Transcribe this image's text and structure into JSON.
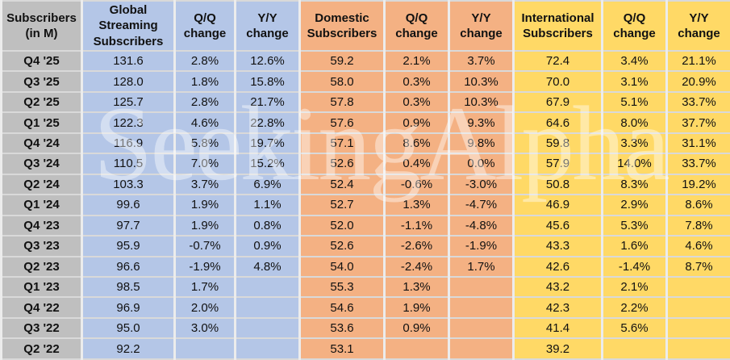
{
  "watermark": "SeekingAlpha",
  "colors": {
    "label_gray": "#BFBFBF",
    "global_blue": "#B4C6E7",
    "domestic_orange": "#F4B183",
    "international_yellow": "#FFD966",
    "gridline": "#D9D9D9"
  },
  "chart_data": {
    "type": "table",
    "title": "Streaming subscribers by quarter (in millions) with Q/Q and Y/Y change",
    "columns": [
      "Subscribers (in M)",
      "Global Streaming Subscribers",
      "Q/Q change",
      "Y/Y change",
      "Domestic Subscribers",
      "Q/Q change",
      "Y/Y change",
      "International Subscribers",
      "Q/Q change",
      "Y/Y change"
    ],
    "column_groups": [
      {
        "name": "labels",
        "color": "#BFBFBF",
        "col_indexes": [
          0
        ]
      },
      {
        "name": "global",
        "color": "#B4C6E7",
        "col_indexes": [
          1,
          2,
          3
        ]
      },
      {
        "name": "domestic",
        "color": "#F4B183",
        "col_indexes": [
          4,
          5,
          6
        ]
      },
      {
        "name": "international",
        "color": "#FFD966",
        "col_indexes": [
          7,
          8,
          9
        ]
      }
    ],
    "rows": [
      [
        "Q4 '25",
        "131.6",
        "2.8%",
        "12.6%",
        "59.2",
        "2.1%",
        "3.7%",
        "72.4",
        "3.4%",
        "21.1%"
      ],
      [
        "Q3 '25",
        "128.0",
        "1.8%",
        "15.8%",
        "58.0",
        "0.3%",
        "10.3%",
        "70.0",
        "3.1%",
        "20.9%"
      ],
      [
        "Q2 '25",
        "125.7",
        "2.8%",
        "21.7%",
        "57.8",
        "0.3%",
        "10.3%",
        "67.9",
        "5.1%",
        "33.7%"
      ],
      [
        "Q1 '25",
        "122.3",
        "4.6%",
        "22.8%",
        "57.6",
        "0.9%",
        "9.3%",
        "64.6",
        "8.0%",
        "37.7%"
      ],
      [
        "Q4 '24",
        "116.9",
        "5.8%",
        "19.7%",
        "57.1",
        "8.6%",
        "9.8%",
        "59.8",
        "3.3%",
        "31.1%"
      ],
      [
        "Q3 '24",
        "110.5",
        "7.0%",
        "15.2%",
        "52.6",
        "0.4%",
        "0.0%",
        "57.9",
        "14.0%",
        "33.7%"
      ],
      [
        "Q2 '24",
        "103.3",
        "3.7%",
        "6.9%",
        "52.4",
        "-0.6%",
        "-3.0%",
        "50.8",
        "8.3%",
        "19.2%"
      ],
      [
        "Q1 '24",
        "99.6",
        "1.9%",
        "1.1%",
        "52.7",
        "1.3%",
        "-4.7%",
        "46.9",
        "2.9%",
        "8.6%"
      ],
      [
        "Q4 '23",
        "97.7",
        "1.9%",
        "0.8%",
        "52.0",
        "-1.1%",
        "-4.8%",
        "45.6",
        "5.3%",
        "7.8%"
      ],
      [
        "Q3 '23",
        "95.9",
        "-0.7%",
        "0.9%",
        "52.6",
        "-2.6%",
        "-1.9%",
        "43.3",
        "1.6%",
        "4.6%"
      ],
      [
        "Q2 '23",
        "96.6",
        "-1.9%",
        "4.8%",
        "54.0",
        "-2.4%",
        "1.7%",
        "42.6",
        "-1.4%",
        "8.7%"
      ],
      [
        "Q1 '23",
        "98.5",
        "1.7%",
        "",
        "55.3",
        "1.3%",
        "",
        "43.2",
        "2.1%",
        ""
      ],
      [
        "Q4 '22",
        "96.9",
        "2.0%",
        "",
        "54.6",
        "1.9%",
        "",
        "42.3",
        "2.2%",
        ""
      ],
      [
        "Q3 '22",
        "95.0",
        "3.0%",
        "",
        "53.6",
        "0.9%",
        "",
        "41.4",
        "5.6%",
        ""
      ],
      [
        "Q2 '22",
        "92.2",
        "",
        "",
        "53.1",
        "",
        "",
        "39.2",
        "",
        ""
      ]
    ]
  }
}
